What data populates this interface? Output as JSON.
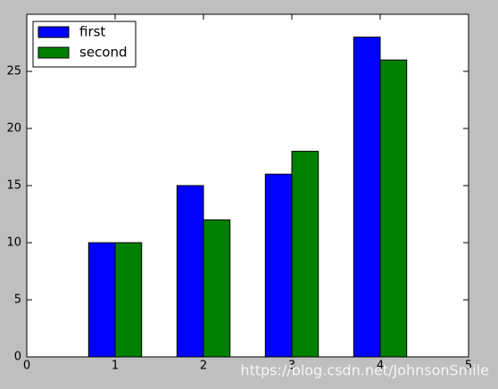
{
  "chart_data": {
    "type": "bar",
    "x": [
      1,
      2,
      3,
      4
    ],
    "series": [
      {
        "name": "first",
        "color": "#0000ff",
        "values": [
          10,
          15,
          16,
          28
        ]
      },
      {
        "name": "second",
        "color": "#008000",
        "values": [
          10,
          12,
          18,
          26
        ]
      }
    ],
    "xlim": [
      0,
      5
    ],
    "xticks": [
      0,
      1,
      2,
      3,
      4,
      5
    ],
    "ylim": [
      0,
      30
    ],
    "yticks": [
      0,
      5,
      10,
      15,
      20,
      25
    ],
    "legend": "upper-left",
    "watermark": "https://blog.csdn.net/JohnsonSmile"
  }
}
